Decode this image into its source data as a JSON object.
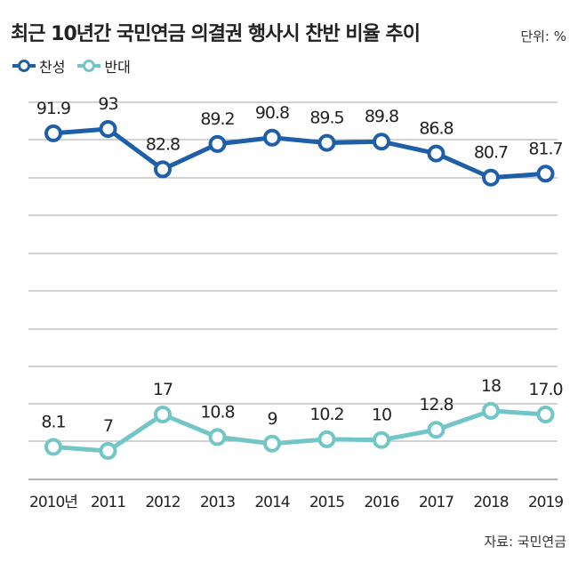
{
  "header": {
    "title": "최근 10년간 국민연금 의결권 행사시 찬반 비율 추이",
    "unit": "단위: %"
  },
  "footer": {
    "source": "자료: 국민연금"
  },
  "colors": {
    "approve": "#1f5fa8",
    "oppose": "#72c6c7",
    "grid": "#888888"
  },
  "chart_data": {
    "type": "line",
    "title": "최근 10년간 국민연금 의결권 행사시 찬반 비율 추이",
    "categories": [
      "2010년",
      "2011",
      "2012",
      "2013",
      "2014",
      "2015",
      "2016",
      "2017",
      "2018",
      "2019"
    ],
    "series": [
      {
        "name": "찬성",
        "values": [
          91.9,
          93,
          82.8,
          89.2,
          90.8,
          89.5,
          89.8,
          86.8,
          80.7,
          81.7
        ],
        "labels": [
          "91.9",
          "93",
          "82.8",
          "89.2",
          "90.8",
          "89.5",
          "89.8",
          "86.8",
          "80.7",
          "81.7"
        ]
      },
      {
        "name": "반대",
        "values": [
          8.1,
          7,
          17,
          10.8,
          9,
          10.2,
          10,
          12.8,
          18,
          17.0
        ],
        "labels": [
          "8.1",
          "7",
          "17",
          "10.8",
          "9",
          "10.2",
          "10",
          "12.8",
          "18",
          "17.0"
        ]
      }
    ],
    "grid": true,
    "legend": "top-left"
  }
}
